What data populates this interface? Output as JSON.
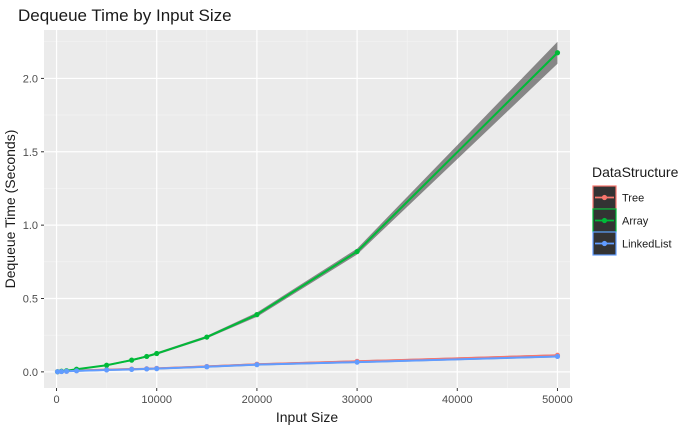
{
  "chart_data": {
    "type": "line",
    "title": "Dequeue Time by Input Size",
    "xlabel": "Input Size",
    "ylabel": "Dequeue Time (Seconds)",
    "xlim": [
      -1250,
      51250
    ],
    "ylim": [
      -0.11,
      2.33
    ],
    "xticks": [
      0,
      10000,
      20000,
      30000,
      40000,
      50000
    ],
    "yticks": [
      0.0,
      0.5,
      1.0,
      1.5,
      2.0
    ],
    "xtick_labels": [
      "0",
      "10000",
      "20000",
      "30000",
      "40000",
      "50000"
    ],
    "ytick_labels": [
      "0.0",
      "0.5",
      "1.0",
      "1.5",
      "2.0"
    ],
    "grid": true,
    "legend": {
      "title": "DataStructure",
      "position": "right"
    },
    "series": [
      {
        "name": "Tree",
        "color": "#F8766D",
        "x": [
          100,
          500,
          1000,
          2000,
          5000,
          7500,
          9000,
          10000,
          15000,
          20000,
          30000,
          50000
        ],
        "y": [
          0.001,
          0.003,
          0.005,
          0.009,
          0.015,
          0.019,
          0.021,
          0.024,
          0.037,
          0.052,
          0.072,
          0.113
        ],
        "band": 0.006
      },
      {
        "name": "Array",
        "color": "#00BA38",
        "x": [
          100,
          500,
          1000,
          2000,
          5000,
          7500,
          9000,
          10000,
          15000,
          20000,
          30000,
          50000
        ],
        "y": [
          0.001,
          0.004,
          0.008,
          0.018,
          0.045,
          0.08,
          0.105,
          0.125,
          0.237,
          0.39,
          0.82,
          2.175
        ],
        "band_lower": [
          0.0005,
          0.003,
          0.006,
          0.014,
          0.04,
          0.074,
          0.098,
          0.117,
          0.228,
          0.375,
          0.8,
          2.1
        ],
        "band_upper": [
          0.0015,
          0.005,
          0.01,
          0.022,
          0.05,
          0.086,
          0.112,
          0.133,
          0.246,
          0.405,
          0.84,
          2.25
        ]
      },
      {
        "name": "LinkedList",
        "color": "#619CFF",
        "x": [
          100,
          500,
          1000,
          2000,
          5000,
          7500,
          9000,
          10000,
          15000,
          20000,
          30000,
          50000
        ],
        "y": [
          0.001,
          0.002,
          0.004,
          0.007,
          0.013,
          0.017,
          0.02,
          0.022,
          0.035,
          0.049,
          0.066,
          0.105
        ],
        "band": 0.006
      }
    ]
  }
}
